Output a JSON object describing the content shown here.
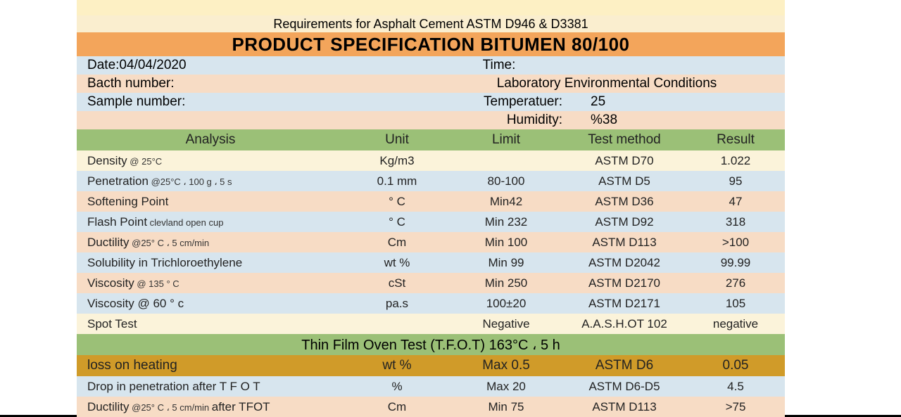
{
  "colors": {
    "cream_top": "#fdf0c4",
    "cream": "#fbf3da",
    "req_band": "#faeecf",
    "title_band": "#f3a55b",
    "green": "#9bc077",
    "blue": "#d7e5ee",
    "peach": "#f7dcc5",
    "gold": "#d09b29",
    "text": "#222222",
    "bg": "#ffffff"
  },
  "fonts": {
    "body_pt": 17,
    "header_pt": 19,
    "title_pt": 26,
    "meta_pt": 19,
    "sub_pt": 13
  },
  "header": {
    "requirements": "Requirements for Asphalt Cement ASTM D946 & D3381",
    "title": "PRODUCT SPECIFICATION   BITUMEN 80/100"
  },
  "meta": {
    "date_label": "Date:",
    "date_value": "04/04/2020",
    "time_label": "Time:",
    "batch_label": "Bacth number:",
    "lab_label": "Laboratory Environmental Conditions",
    "sample_label": "Sample number:",
    "temp_label": "Temperatuer:",
    "temp_value": "25",
    "hum_label": "Humidity:",
    "hum_value": "%38"
  },
  "table": {
    "columns": [
      "Analysis",
      "Unit",
      "Limit",
      "Test method",
      "Result"
    ],
    "rows": [
      {
        "band": "cream",
        "analysis": "Density",
        "sub": " @ 25°C",
        "unit": "Kg/m3",
        "limit": "",
        "method": "ASTM D70",
        "result": "1.022"
      },
      {
        "band": "blue",
        "analysis": "Penetration",
        "sub": " @25°C ، 100 g ، 5 s",
        "unit": "0.1 mm",
        "limit": "80-100",
        "method": "ASTM D5",
        "result": "95"
      },
      {
        "band": "peach",
        "analysis": "Softening Point",
        "sub": "",
        "unit": "° C",
        "limit": "Min42",
        "method": "ASTM D36",
        "result": "47"
      },
      {
        "band": "blue",
        "analysis": "Flash Point",
        "sub": " clevland open cup",
        "unit": "° C",
        "limit": "Min 232",
        "method": "ASTM D92",
        "result": "318"
      },
      {
        "band": "peach",
        "analysis": "Ductility",
        "sub": " @25° C ، 5 cm/min",
        "unit": "Cm",
        "limit": "Min 100",
        "method": "ASTM D113",
        "result": ">100"
      },
      {
        "band": "blue",
        "analysis": "Solubility in Trichloroethylene",
        "sub": "",
        "unit": "wt %",
        "limit": "Min 99",
        "method": "ASTM D2042",
        "result": "99.99"
      },
      {
        "band": "peach",
        "analysis": "Viscosity",
        "sub": "  @ 135 ° C",
        "unit": "cSt",
        "limit": "Min 250",
        "method": "ASTM D2170",
        "result": "276"
      },
      {
        "band": "blue",
        "analysis": " Viscosity @ 60 ° c",
        "sub": "",
        "unit": "pa.s",
        "limit": "100±20",
        "method": "ASTM D2171",
        "result": "105"
      },
      {
        "band": "cream",
        "analysis": "Spot Test",
        "sub": "",
        "unit": "",
        "limit": "Negative",
        "method": "A.A.S.H.OT 102",
        "result": "negative"
      }
    ],
    "tfot_title": "Thin Film Oven Test (T.F.O.T) 163°C ، 5 h",
    "tfot_rows": [
      {
        "band": "gold",
        "analysis": "loss on heating",
        "sub": "",
        "unit": "wt %",
        "limit": "Max 0.5",
        "method": "ASTM D6",
        "result": "0.05"
      },
      {
        "band": "blue",
        "analysis": "Drop in penetration after T F O T",
        "sub": "",
        "unit": "%",
        "limit": "Max 20",
        "method": "ASTM D6-D5",
        "result": "4.5"
      },
      {
        "band": "peach",
        "analysis": "Ductility",
        "sub": " @25° C ، 5 cm/min ",
        "tail": " after TFOT",
        "unit": "Cm",
        "limit": "Min 75",
        "method": "ASTM D113",
        "result": ">75"
      }
    ]
  }
}
